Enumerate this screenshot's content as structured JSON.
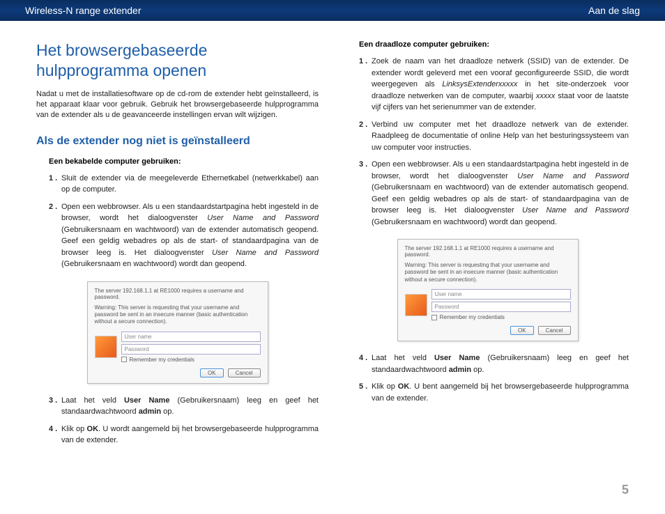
{
  "header": {
    "left": "Wireless-N range extender",
    "right": "Aan de slag"
  },
  "main_title": "Het browsergebaseerde hulpprogramma openen",
  "intro": "Nadat u met de installatiesoftware op de cd-rom de extender hebt geïnstalleerd, is het apparaat klaar voor gebruik. Gebruik het browsergebaseerde hulpprogramma van de extender als u de geavanceerde instellingen ervan wilt wijzigen.",
  "section_title": "Als de extender nog niet is geïnstalleerd",
  "wired_heading": "Een bekabelde computer gebruiken:",
  "wired_steps": [
    "Sluit de extender via de meegeleverde Ethernetkabel (netwerkkabel) aan op de computer.",
    "Open een webbrowser. Als u een standaardstartpagina hebt ingesteld in de browser, wordt het dialoogvenster <em>User Name and Password</em> (Gebruikersnaam en wachtwoord) van de extender automatisch geopend. Geef een geldig webadres op als de start- of standaardpagina van de browser leeg is. Het dialoogvenster <em>User Name and Password</em> (Gebruikersnaam en wachtwoord) wordt dan geopend.",
    "Laat het veld <strong>User Name</strong> (Gebruikersnaam) leeg en geef het standaardwachtwoord <strong>admin</strong> op.",
    "Klik op <strong>OK</strong>. U wordt aangemeld bij het browsergebaseerde hulpprogramma van de extender."
  ],
  "wireless_heading": "Een draadloze computer gebruiken:",
  "wireless_steps": [
    "Zoek de naam van het draadloze netwerk (SSID) van de extender. De extender wordt geleverd met een vooraf geconfigureerde SSID, die wordt weergegeven als <em>LinksysExtenderxxxxx</em> in het site-onderzoek voor draadloze netwerken van de computer, waarbij <em>xxxxx</em> staat voor de laatste vijf cijfers van het serienummer van de extender.",
    "Verbind uw computer met het draadloze netwerk van de extender. Raadpleeg de documentatie of online Help van het besturingssysteem van uw computer voor instructies.",
    "Open een webbrowser. Als u een standaardstartpagina hebt ingesteld in de browser, wordt het dialoogvenster <em>User Name and Password</em> (Gebruikersnaam en wachtwoord) van de extender automatisch geopend. Geef een geldig webadres op als de start- of standaardpagina van de browser leeg is. Het dialoogvenster <em>User Name and Password</em> (Gebruikersnaam en wachtwoord) wordt dan geopend.",
    "Laat het veld <strong>User Name</strong> (Gebruikersnaam) leeg en geef het standaardwachtwoord <strong>admin</strong> op.",
    "Klik op <strong>OK</strong>. U bent aangemeld bij het browsergebaseerde hulpprogramma van de extender."
  ],
  "dialog": {
    "server_line": "The server 192.168.1.1 at RE1000 requires a username and password.",
    "warning": "Warning: This server is requesting that your username and password be sent in an insecure manner (basic authentication without a secure connection).",
    "user_placeholder": "User name",
    "pass_placeholder": "Password",
    "remember": "Remember my credentials",
    "ok": "OK",
    "cancel": "Cancel"
  },
  "page_number": "5"
}
